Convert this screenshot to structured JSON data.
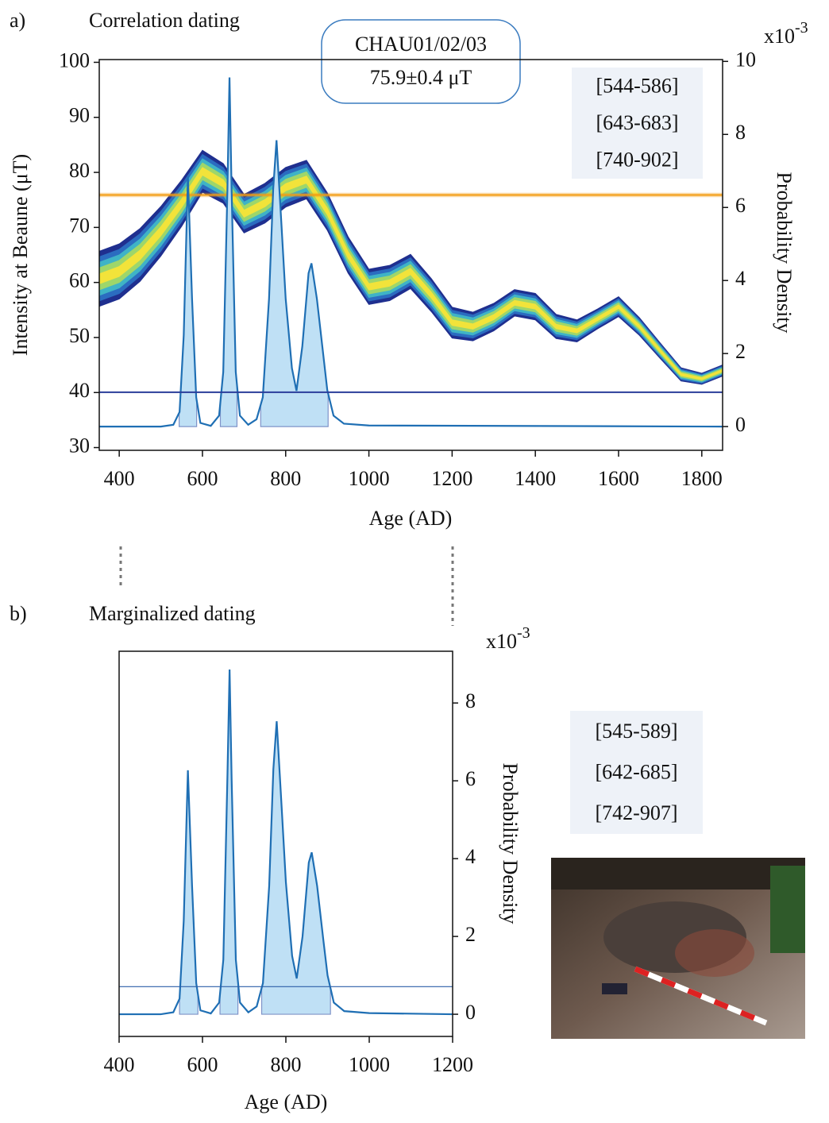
{
  "chart_data": [
    {
      "type": "reference-curve",
      "label": "a)",
      "title": "Correlation dating",
      "xlabel": "Age (AD)",
      "ylabel": "Intensity at Beaune (μT)",
      "y2label": "Probability Density",
      "y2_multiplier": {
        "base": "x10",
        "exponent": "-3"
      },
      "xlim": [
        352,
        1850
      ],
      "xticks": [
        400,
        600,
        800,
        1000,
        1200,
        1400,
        1600,
        1800
      ],
      "ylim": [
        29.5,
        100.5
      ],
      "yticks": [
        30,
        40,
        50,
        60,
        70,
        80,
        90,
        100
      ],
      "y2lim": [
        -0.65,
        10.05
      ],
      "y2ticks": [
        0,
        2,
        4,
        6,
        8,
        10
      ],
      "sample": {
        "name": "CHAU01/02/03",
        "label": "75.9±0.4 μT",
        "value": 75.9,
        "error": 0.4,
        "color": "#f39c12"
      },
      "curve": {
        "x": [
          350,
          400,
          450,
          500,
          550,
          600,
          650,
          700,
          750,
          800,
          850,
          900,
          950,
          1000,
          1050,
          1100,
          1150,
          1200,
          1250,
          1300,
          1350,
          1400,
          1450,
          1500,
          1550,
          1600,
          1650,
          1700,
          1750,
          1800,
          1850
        ],
        "values": [
          60.6,
          62,
          65,
          69.3,
          74.4,
          80.2,
          78,
          72.5,
          74.4,
          77.3,
          78.7,
          72.9,
          65,
          59.2,
          59.9,
          62,
          57.7,
          52.7,
          52,
          53.7,
          56.3,
          55.6,
          52,
          51.2,
          53.4,
          55.6,
          52,
          47.6,
          43.3,
          42.5,
          44
        ],
        "errors": [
          5,
          5,
          4.8,
          4.5,
          4.2,
          3.8,
          3.6,
          3.5,
          3.6,
          3.6,
          3.5,
          3.4,
          3.3,
          3.2,
          3.2,
          3.1,
          3,
          2.8,
          2.6,
          2.5,
          2.4,
          2.4,
          2.2,
          2,
          1.8,
          1.8,
          1.6,
          1.4,
          1.2,
          1,
          1
        ]
      },
      "density": {
        "color": "#1f6fb4",
        "x": [
          350,
          500,
          530,
          545,
          555,
          565,
          575,
          585,
          595,
          620,
          640,
          650,
          660,
          665,
          670,
          680,
          690,
          710,
          730,
          745,
          760,
          770,
          778,
          790,
          800,
          815,
          826,
          840,
          855,
          862,
          875,
          890,
          900,
          915,
          940,
          1000,
          1850
        ],
        "values": [
          0,
          0,
          0.05,
          0.4,
          2.5,
          6.86,
          3.5,
          0.8,
          0.1,
          0.02,
          0.3,
          1.5,
          6.5,
          9.56,
          6.5,
          1.5,
          0.3,
          0.05,
          0.2,
          0.8,
          3.5,
          6.5,
          7.84,
          5.5,
          3.5,
          1.6,
          0.98,
          2.2,
          4.2,
          4.47,
          3.5,
          2,
          1,
          0.3,
          0.08,
          0.03,
          0
        ]
      },
      "threshold": 0.94,
      "threshold_color": "#2a3d9a",
      "intervals": [
        [
          544,
          586
        ],
        [
          643,
          683
        ],
        [
          740,
          902
        ]
      ],
      "interval_labels": [
        "[544-586]",
        "[643-683]",
        "[740-902]"
      ]
    },
    {
      "type": "density",
      "label": "b)",
      "title": "Marginalized dating",
      "xlabel": "Age (AD)",
      "y2label": "Probability Density",
      "y2_multiplier": {
        "base": "x10",
        "exponent": "-3"
      },
      "xlim": [
        400,
        1200
      ],
      "xticks": [
        400,
        600,
        800,
        1000,
        1200
      ],
      "y2lim": [
        -0.57,
        9.33
      ],
      "y2ticks": [
        0,
        2,
        4,
        6,
        8
      ],
      "density": {
        "color": "#1f6fb4",
        "x": [
          400,
          500,
          530,
          545,
          555,
          565,
          575,
          585,
          595,
          620,
          640,
          650,
          660,
          665,
          670,
          680,
          690,
          710,
          730,
          745,
          760,
          770,
          778,
          790,
          800,
          815,
          826,
          840,
          855,
          862,
          875,
          890,
          900,
          915,
          940,
          1000,
          1200
        ],
        "values": [
          0,
          0,
          0.05,
          0.4,
          2.4,
          6.27,
          3.3,
          0.8,
          0.1,
          0.02,
          0.3,
          1.4,
          6.2,
          8.86,
          6,
          1.4,
          0.3,
          0.05,
          0.2,
          0.8,
          3.3,
          6.3,
          7.53,
          5.3,
          3.4,
          1.5,
          0.92,
          2,
          3.9,
          4.16,
          3.3,
          1.9,
          1,
          0.3,
          0.08,
          0.03,
          0
        ]
      },
      "threshold": 0.71,
      "threshold_color": "#2d5fa8",
      "intervals": [
        [
          545,
          589
        ],
        [
          642,
          685
        ],
        [
          742,
          907
        ]
      ],
      "interval_labels": [
        "[545-589]",
        "[642-685]",
        "[742-907]"
      ]
    }
  ]
}
